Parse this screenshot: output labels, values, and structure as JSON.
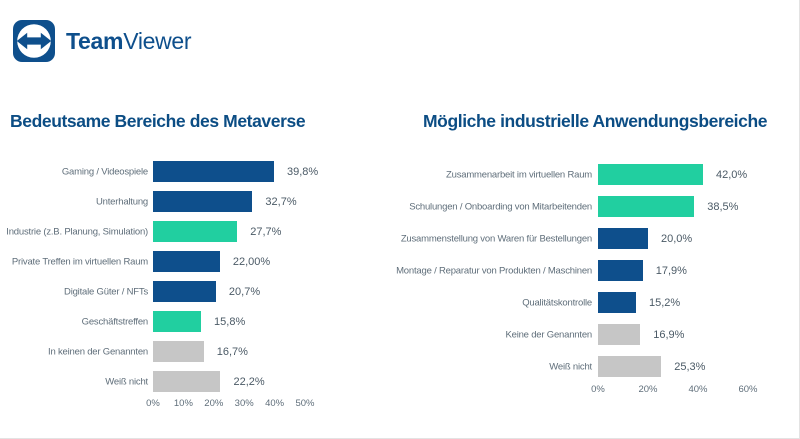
{
  "brand": {
    "name_bold": "Team",
    "name_regular": "Viewer",
    "logo_icon": "teamviewer-double-arrow-icon"
  },
  "palette": {
    "blue": "#0e4f8c",
    "teal": "#21cfa0",
    "gray": "#c6c6c6",
    "title_color": "#0c4d84",
    "label_color": "#5f6e7a",
    "value_color": "#4b5a66"
  },
  "chart_data": [
    {
      "type": "bar",
      "orientation": "horizontal",
      "title": "Bedeutsame Bereiche des Metaverse",
      "categories": [
        "Gaming / Videospiele",
        "Unterhaltung",
        "Industrie (z.B. Planung, Simulation)",
        "Private Treffen im virtuellen Raum",
        "Digitale Güter / NFTs",
        "Geschäftstreffen",
        "In keinen der Genannten",
        "Weiß nicht"
      ],
      "values": [
        39.8,
        32.7,
        27.7,
        22.0,
        20.7,
        15.8,
        16.7,
        22.2
      ],
      "value_labels": [
        "39,8%",
        "32,7%",
        "27,7%",
        "22,00%",
        "20,7%",
        "15,8%",
        "16,7%",
        "22,2%"
      ],
      "colors": [
        "blue",
        "blue",
        "teal",
        "blue",
        "blue",
        "teal",
        "gray",
        "gray"
      ],
      "xlim": [
        0,
        50
      ],
      "tick_labels": [
        "0%",
        "10%",
        "20%",
        "30%",
        "40%",
        "50%"
      ],
      "tick_values": [
        0,
        10,
        20,
        30,
        40,
        50
      ],
      "grid": false,
      "legend": false
    },
    {
      "type": "bar",
      "orientation": "horizontal",
      "title": "Mögliche industrielle Anwendungsbereiche",
      "categories": [
        "Zusammenarbeit im virtuellen Raum",
        "Schulungen / Onboarding von Mitarbeitenden",
        "Zusammenstellung von Waren für Bestellungen",
        "Montage / Reparatur von Produkten / Maschinen",
        "Qualitätskontrolle",
        "Keine der Genannten",
        "Weiß nicht"
      ],
      "values": [
        42.0,
        38.5,
        20.0,
        17.9,
        15.2,
        16.9,
        25.3
      ],
      "value_labels": [
        "42,0%",
        "38,5%",
        "20,0%",
        "17,9%",
        "15,2%",
        "16,9%",
        "25,3%"
      ],
      "colors": [
        "teal",
        "teal",
        "blue",
        "blue",
        "blue",
        "gray",
        "gray"
      ],
      "xlim": [
        0,
        60
      ],
      "tick_labels": [
        "0%",
        "20%",
        "40%",
        "60%"
      ],
      "tick_values": [
        0,
        20,
        40,
        60
      ],
      "grid": false,
      "legend": false
    }
  ]
}
